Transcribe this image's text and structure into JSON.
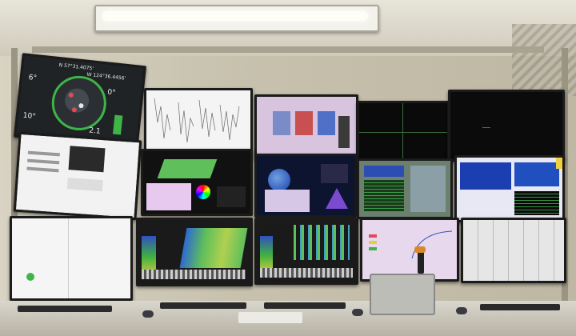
{
  "scene": "Wall of monitors in a control room",
  "colors": {
    "wall": "#c9c4b4",
    "screen_black": "#0b0b0b",
    "bathymetry_green": "#5fbf5a",
    "data_blue": "#1b3fb0"
  },
  "screens": {
    "nav_dial": {
      "lat": "N 57°31.4075'",
      "lon": "W 124°36.4456'",
      "left_value": "6°",
      "right_value": "0°",
      "bottom_left": "10°",
      "bottom_right": "2.1"
    }
  }
}
